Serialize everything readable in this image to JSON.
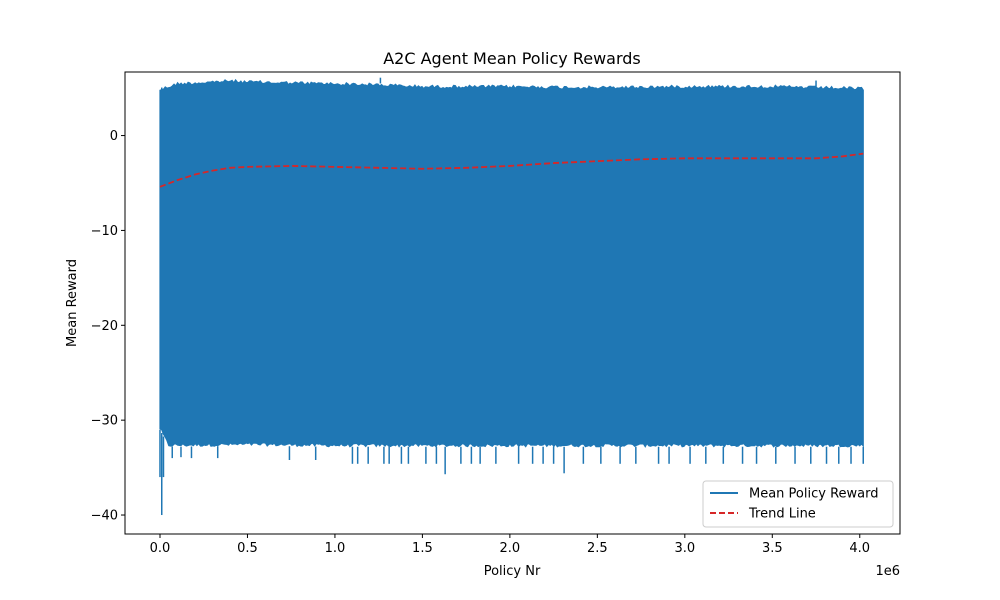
{
  "chart_data": {
    "type": "line",
    "title": "A2C Agent Mean Policy Rewards",
    "xlabel": "Policy Nr",
    "ylabel": "Mean Reward",
    "x_offset_label": "1e6",
    "xlim": [
      -0.2,
      4.23
    ],
    "ylim": [
      -42,
      6.7
    ],
    "x_ticks": [
      0.0,
      0.5,
      1.0,
      1.5,
      2.0,
      2.5,
      3.0,
      3.5,
      4.0
    ],
    "x_tick_labels": [
      "0.0",
      "0.5",
      "1.0",
      "1.5",
      "2.0",
      "2.5",
      "3.0",
      "3.5",
      "4.0"
    ],
    "y_ticks": [
      0,
      -10,
      -20,
      -30,
      -40
    ],
    "y_tick_labels": [
      "0",
      "−10",
      "−20",
      "−30",
      "−40"
    ],
    "grid": false,
    "legend_position": "lower-right",
    "series": [
      {
        "name": "Mean Policy Reward",
        "style": "solid",
        "color": "#1f77b4",
        "x_range": [
          0.0,
          4.02
        ],
        "upper_envelope": [
          [
            0.0,
            5.0
          ],
          [
            0.05,
            5.3
          ],
          [
            0.1,
            5.6
          ],
          [
            0.2,
            5.7
          ],
          [
            0.3,
            5.8
          ],
          [
            0.4,
            5.9
          ],
          [
            0.5,
            5.8
          ],
          [
            0.75,
            5.7
          ],
          [
            1.0,
            5.6
          ],
          [
            1.25,
            5.5
          ],
          [
            1.5,
            5.3
          ],
          [
            2.0,
            5.3
          ],
          [
            2.5,
            5.2
          ],
          [
            3.0,
            5.3
          ],
          [
            3.5,
            5.3
          ],
          [
            4.02,
            5.1
          ]
        ],
        "lower_envelope": [
          [
            0.0,
            -31.0
          ],
          [
            0.05,
            -32.8
          ],
          [
            0.5,
            -32.7
          ],
          [
            1.0,
            -32.8
          ],
          [
            2.0,
            -32.8
          ],
          [
            3.0,
            -32.8
          ],
          [
            4.02,
            -32.8
          ]
        ],
        "low_spikes": [
          [
            0.0,
            -36.0
          ],
          [
            0.01,
            -40.0
          ],
          [
            0.02,
            -36.0
          ],
          [
            0.07,
            -34.0
          ],
          [
            0.12,
            -33.9
          ],
          [
            0.18,
            -34.0
          ],
          [
            0.33,
            -34.0
          ],
          [
            0.74,
            -34.2
          ],
          [
            0.89,
            -34.2
          ],
          [
            1.1,
            -34.6
          ],
          [
            1.13,
            -34.6
          ],
          [
            1.19,
            -34.6
          ],
          [
            1.28,
            -34.6
          ],
          [
            1.31,
            -34.6
          ],
          [
            1.38,
            -34.6
          ],
          [
            1.42,
            -34.6
          ],
          [
            1.52,
            -34.6
          ],
          [
            1.58,
            -34.6
          ],
          [
            1.63,
            -35.7
          ],
          [
            1.72,
            -34.6
          ],
          [
            1.78,
            -34.6
          ],
          [
            1.83,
            -34.6
          ],
          [
            1.92,
            -34.6
          ],
          [
            2.05,
            -34.6
          ],
          [
            2.13,
            -34.6
          ],
          [
            2.19,
            -34.6
          ],
          [
            2.25,
            -34.6
          ],
          [
            2.31,
            -35.6
          ],
          [
            2.42,
            -34.6
          ],
          [
            2.52,
            -34.6
          ],
          [
            2.63,
            -34.6
          ],
          [
            2.72,
            -34.6
          ],
          [
            2.85,
            -34.6
          ],
          [
            2.91,
            -34.6
          ],
          [
            3.03,
            -34.6
          ],
          [
            3.12,
            -34.6
          ],
          [
            3.22,
            -34.6
          ],
          [
            3.33,
            -34.6
          ],
          [
            3.41,
            -34.6
          ],
          [
            3.52,
            -34.6
          ],
          [
            3.63,
            -34.6
          ],
          [
            3.72,
            -34.6
          ],
          [
            3.81,
            -34.6
          ],
          [
            3.88,
            -34.6
          ],
          [
            3.95,
            -34.6
          ],
          [
            4.02,
            -34.6
          ]
        ],
        "high_spikes": [
          [
            0.01,
            2.2
          ],
          [
            1.26,
            6.1
          ],
          [
            3.75,
            5.8
          ]
        ]
      },
      {
        "name": "Trend Line",
        "style": "dashed",
        "color": "#d62728",
        "x": [
          0.0,
          0.1,
          0.2,
          0.3,
          0.4,
          0.5,
          0.75,
          1.0,
          1.25,
          1.5,
          1.75,
          2.0,
          2.25,
          2.5,
          2.75,
          3.0,
          3.25,
          3.5,
          3.75,
          3.9,
          4.02
        ],
        "y": [
          -5.4,
          -4.7,
          -4.1,
          -3.7,
          -3.4,
          -3.3,
          -3.2,
          -3.3,
          -3.4,
          -3.5,
          -3.4,
          -3.2,
          -2.9,
          -2.7,
          -2.5,
          -2.4,
          -2.4,
          -2.4,
          -2.4,
          -2.2,
          -1.9
        ]
      }
    ]
  }
}
